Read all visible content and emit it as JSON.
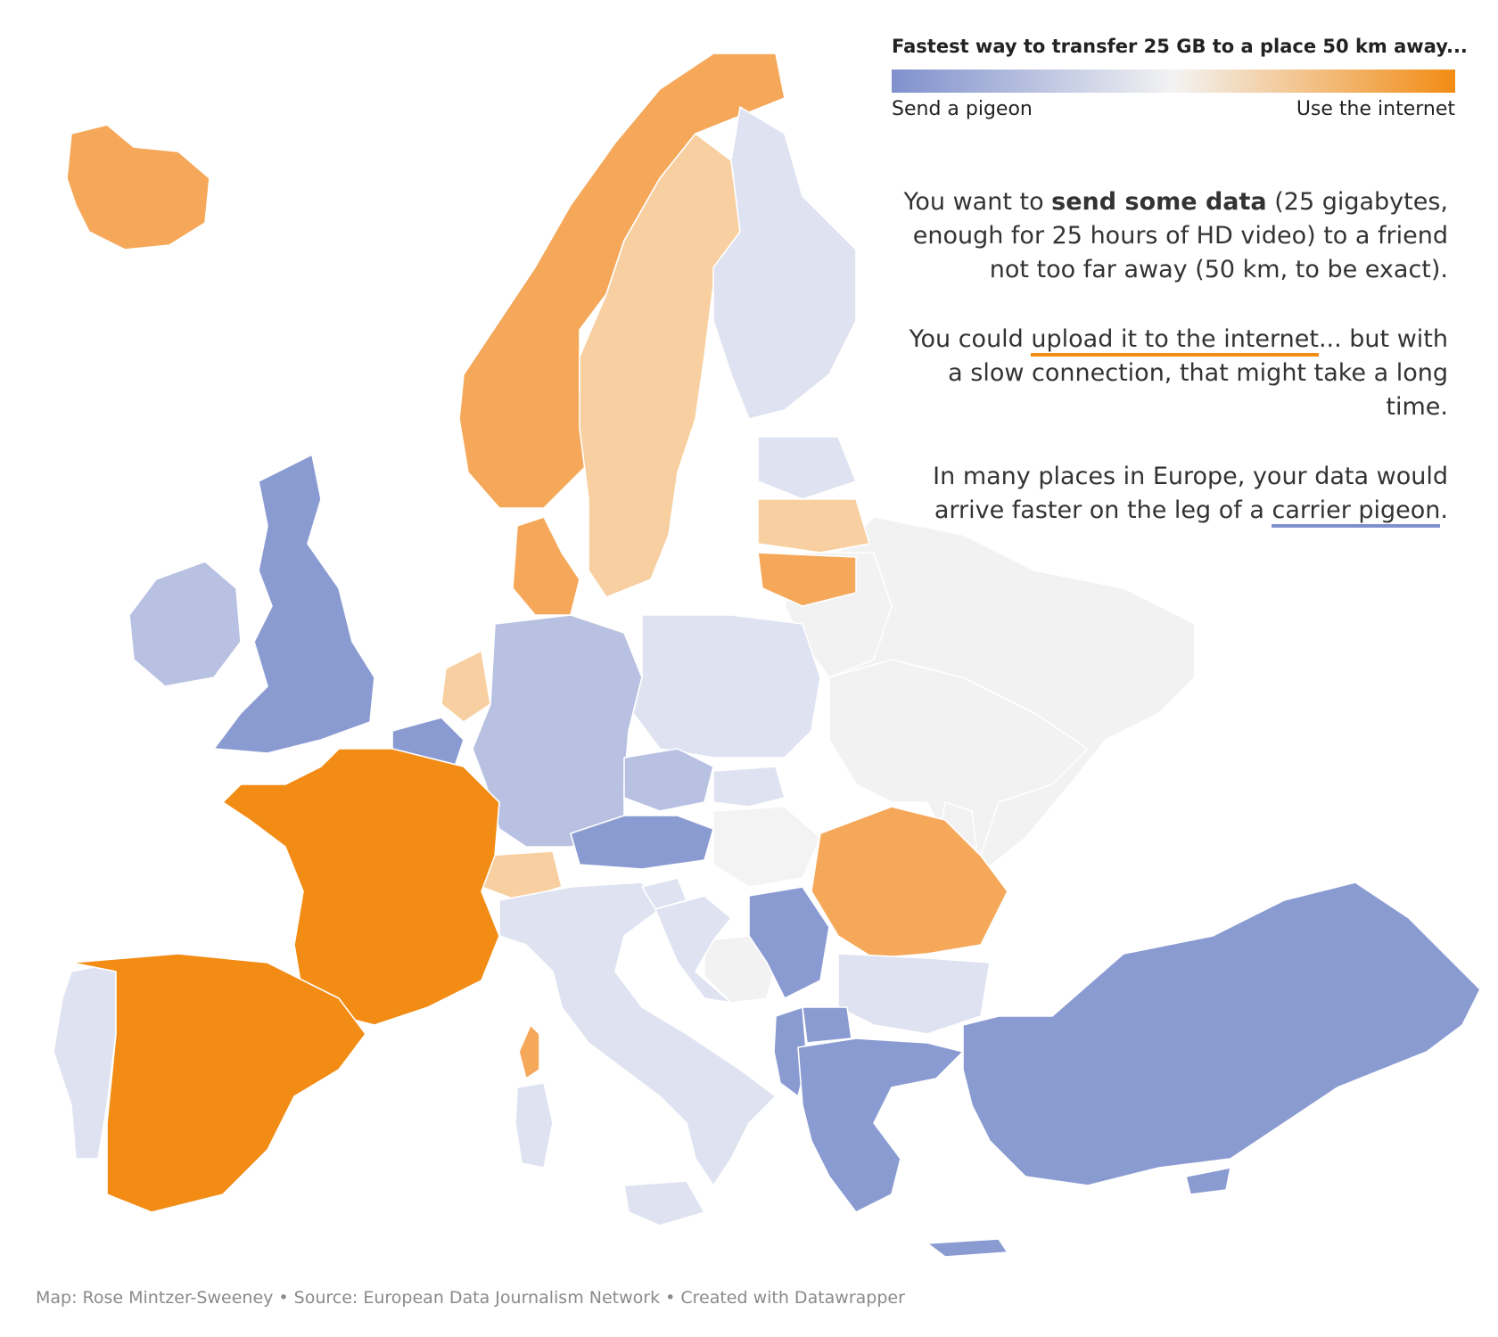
{
  "legend": {
    "title": "Fastest way to transfer 25 GB to a place 50 km away...",
    "left_label": "Send a pigeon",
    "right_label": "Use the internet",
    "gradient_colors": [
      "#7f90cd",
      "#f3f3f3",
      "#f28c14"
    ]
  },
  "story": {
    "p1_before": "You want to ",
    "p1_bold": "send some data",
    "p1_after": " (25 gigabytes, enough for 25 hours of HD video) to a friend not too far away (50 km, to be exact).",
    "p2_before": "You could ",
    "p2_underlined": "upload it to the internet",
    "p2_after": "... but with a slow connection, that might take a long time.",
    "p3_before": "In many places in Europe, your data would arrive faster on the leg of a ",
    "p3_underlined": "carrier pigeon",
    "p3_after": "."
  },
  "credits": "Map: Rose Mintzer-Sweeney • Source: European Data Journalism Network • Created with Datawrapper",
  "colors": {
    "strong_orange": "#f28c14",
    "orange": "#f5a85a",
    "light_orange": "#f8cfa0",
    "neutral": "#f3f3f3",
    "light_blue": "#dfe3f1",
    "blue": "#b8c1e2",
    "strong_blue": "#8a9bd2",
    "no_data": "#f2f2f2"
  },
  "regions": [
    {
      "name": "Iceland",
      "category": "orange"
    },
    {
      "name": "Norway",
      "category": "orange"
    },
    {
      "name": "Sweden",
      "category": "light_orange"
    },
    {
      "name": "Finland",
      "category": "light_blue"
    },
    {
      "name": "Estonia",
      "category": "light_blue"
    },
    {
      "name": "Latvia",
      "category": "light_orange"
    },
    {
      "name": "Lithuania",
      "category": "orange"
    },
    {
      "name": "Denmark",
      "category": "orange"
    },
    {
      "name": "Ireland",
      "category": "blue"
    },
    {
      "name": "United Kingdom",
      "category": "strong_blue"
    },
    {
      "name": "Netherlands",
      "category": "light_orange"
    },
    {
      "name": "Belgium",
      "category": "strong_blue"
    },
    {
      "name": "Germany",
      "category": "blue"
    },
    {
      "name": "Poland",
      "category": "light_blue"
    },
    {
      "name": "Czechia",
      "category": "blue"
    },
    {
      "name": "Slovakia",
      "category": "light_blue"
    },
    {
      "name": "Austria",
      "category": "strong_blue"
    },
    {
      "name": "Hungary",
      "category": "neutral"
    },
    {
      "name": "Switzerland",
      "category": "light_orange"
    },
    {
      "name": "France",
      "category": "strong_orange"
    },
    {
      "name": "Spain",
      "category": "strong_orange"
    },
    {
      "name": "Portugal",
      "category": "light_blue"
    },
    {
      "name": "Italy",
      "category": "light_blue"
    },
    {
      "name": "Corsica",
      "category": "orange"
    },
    {
      "name": "Sardinia",
      "category": "light_blue"
    },
    {
      "name": "Sicily",
      "category": "light_blue"
    },
    {
      "name": "Slovenia",
      "category": "light_blue"
    },
    {
      "name": "Croatia",
      "category": "light_blue"
    },
    {
      "name": "Bosnia and Herzegovina",
      "category": "no_data"
    },
    {
      "name": "Serbia",
      "category": "strong_blue"
    },
    {
      "name": "Romania",
      "category": "orange"
    },
    {
      "name": "Bulgaria",
      "category": "light_blue"
    },
    {
      "name": "North Macedonia",
      "category": "strong_blue"
    },
    {
      "name": "Albania",
      "category": "strong_blue"
    },
    {
      "name": "Greece",
      "category": "strong_blue"
    },
    {
      "name": "Crete",
      "category": "strong_blue"
    },
    {
      "name": "Turkey",
      "category": "strong_blue"
    },
    {
      "name": "Cyprus",
      "category": "strong_blue"
    },
    {
      "name": "Belarus",
      "category": "no_data"
    },
    {
      "name": "Ukraine",
      "category": "no_data"
    },
    {
      "name": "Moldova",
      "category": "no_data"
    },
    {
      "name": "Russia",
      "category": "no_data"
    }
  ]
}
